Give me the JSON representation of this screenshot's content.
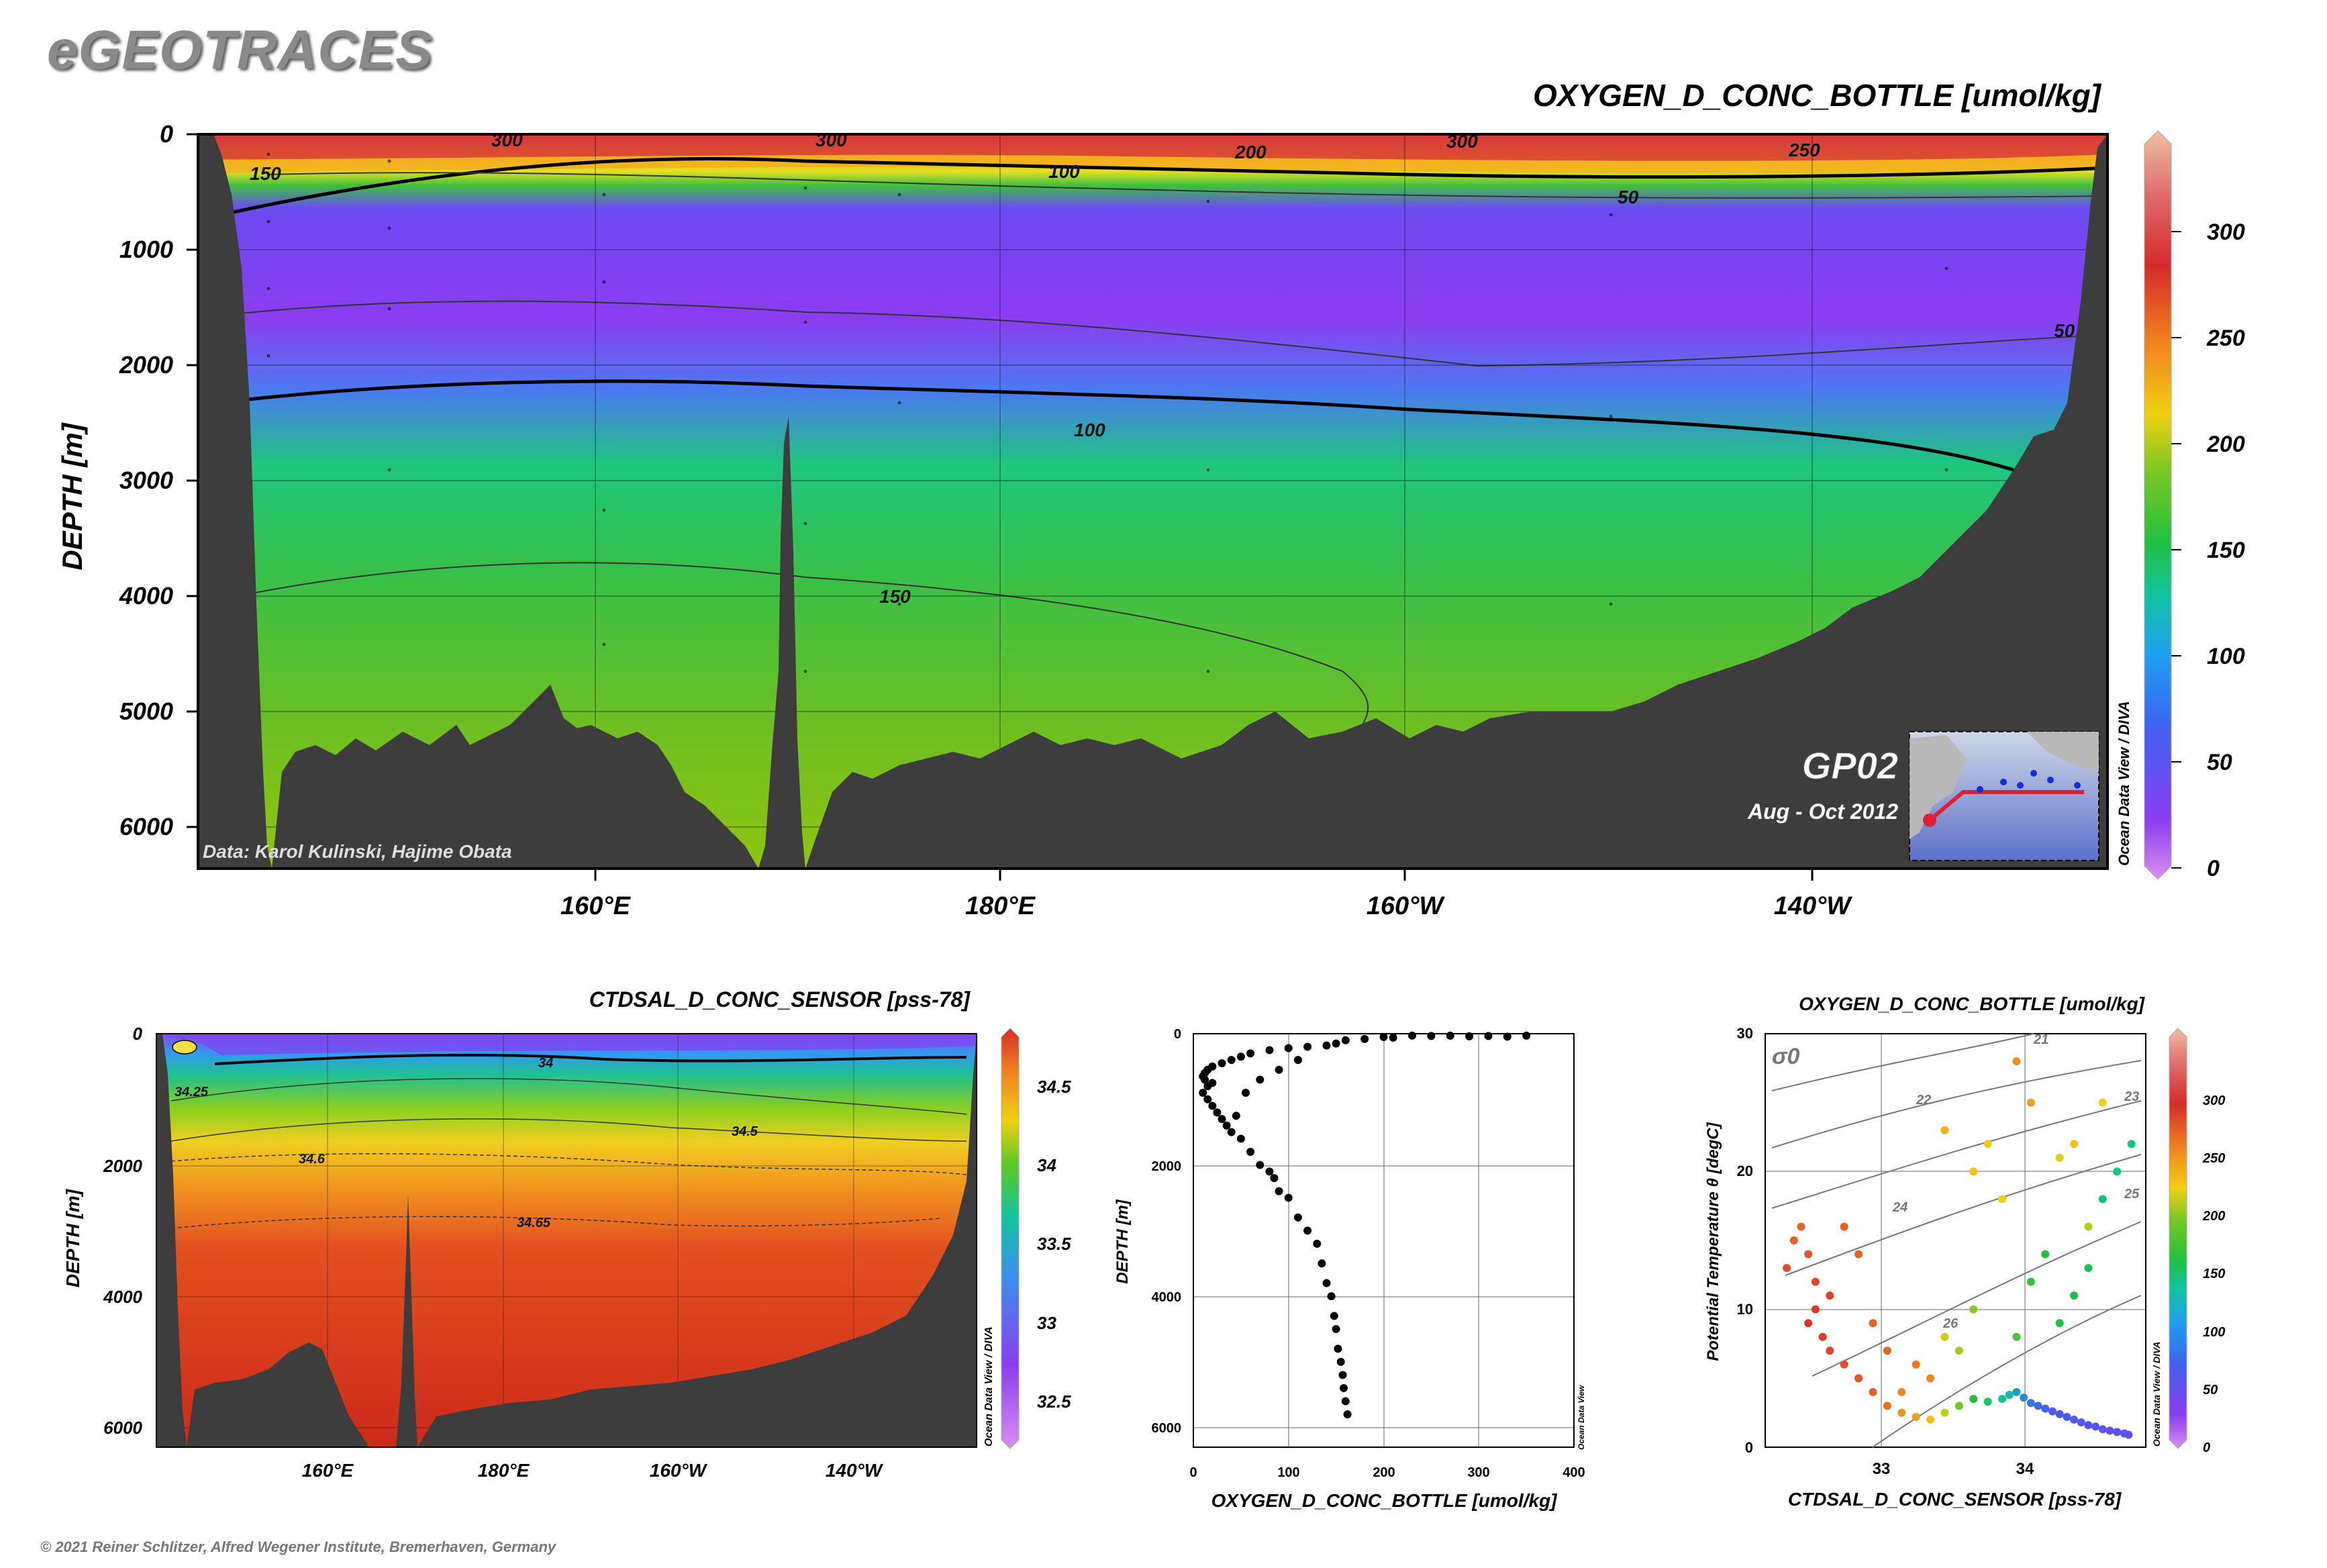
{
  "header": {
    "brand": "eGEOTRACES",
    "copyright": "© 2021 Reiner Schlitzer, Alfred Wegener Institute, Bremerhaven, Germany"
  },
  "colors": {
    "land": "#3d3d3d",
    "frame": "#000000",
    "brand_gray": "#8a8a8a"
  },
  "chart_data": [
    {
      "type": "heatmap",
      "title": "OXYGEN_D_CONC_BOTTLE [umol/kg]",
      "ylabel": "DEPTH [m]",
      "ylim": [
        6300,
        0
      ],
      "yticks": [
        "0",
        "1000",
        "2000",
        "3000",
        "4000",
        "5000",
        "6000"
      ],
      "xticks": [
        "160°E",
        "180°E",
        "160°W",
        "140°W"
      ],
      "colorbar": {
        "ticks": [
          "0",
          "50",
          "100",
          "150",
          "200",
          "250",
          "300"
        ],
        "range": [
          0,
          340
        ],
        "credit": "Ocean Data View / DIVA"
      },
      "contour_labels": [
        "300",
        "300",
        "300",
        "200",
        "250",
        "150",
        "100",
        "50",
        "50",
        "100",
        "150"
      ],
      "credit": "Data: Karol Kulinski, Hajime Obata",
      "inset": {
        "section": "GP02",
        "period": "Aug - Oct 2012"
      }
    },
    {
      "type": "heatmap",
      "title": "CTDSAL_D_CONC_SENSOR [pss-78]",
      "ylabel": "DEPTH [m]",
      "ylim": [
        6300,
        0
      ],
      "yticks": [
        "0",
        "2000",
        "4000",
        "6000"
      ],
      "xticks": [
        "160°E",
        "180°E",
        "160°W",
        "140°W"
      ],
      "colorbar": {
        "ticks": [
          "32.5",
          "33",
          "33.5",
          "34",
          "34.5"
        ],
        "range": [
          32.25,
          34.75
        ],
        "credit": "Ocean Data View / DIVA"
      },
      "contour_labels": [
        "34",
        "34.25",
        "34.5",
        "34.6",
        "34.65"
      ]
    },
    {
      "type": "scatter",
      "title": "",
      "xlabel": "OXYGEN_D_CONC_BOTTLE [umol/kg]",
      "ylabel": "DEPTH [m]",
      "xlim": [
        0,
        400
      ],
      "ylim": [
        6300,
        0
      ],
      "xticks": [
        "0",
        "100",
        "200",
        "300",
        "400"
      ],
      "yticks": [
        "0",
        "2000",
        "4000",
        "6000"
      ],
      "credit": "Ocean Data View",
      "points": [
        [
          230,
          30
        ],
        [
          250,
          35
        ],
        [
          270,
          30
        ],
        [
          290,
          40
        ],
        [
          310,
          35
        ],
        [
          330,
          45
        ],
        [
          350,
          30
        ],
        [
          200,
          50
        ],
        [
          210,
          60
        ],
        [
          180,
          80
        ],
        [
          160,
          100
        ],
        [
          150,
          150
        ],
        [
          140,
          180
        ],
        [
          120,
          200
        ],
        [
          100,
          220
        ],
        [
          80,
          250
        ],
        [
          60,
          300
        ],
        [
          50,
          350
        ],
        [
          40,
          400
        ],
        [
          30,
          450
        ],
        [
          20,
          500
        ],
        [
          15,
          550
        ],
        [
          12,
          600
        ],
        [
          10,
          650
        ],
        [
          12,
          700
        ],
        [
          20,
          750
        ],
        [
          15,
          800
        ],
        [
          10,
          900
        ],
        [
          15,
          1000
        ],
        [
          20,
          1100
        ],
        [
          25,
          1200
        ],
        [
          30,
          1300
        ],
        [
          35,
          1400
        ],
        [
          40,
          1500
        ],
        [
          50,
          1600
        ],
        [
          60,
          1800
        ],
        [
          70,
          2000
        ],
        [
          80,
          2100
        ],
        [
          85,
          2200
        ],
        [
          90,
          2400
        ],
        [
          100,
          2500
        ],
        [
          110,
          2800
        ],
        [
          120,
          3000
        ],
        [
          130,
          3200
        ],
        [
          135,
          3500
        ],
        [
          140,
          3800
        ],
        [
          145,
          4000
        ],
        [
          148,
          4300
        ],
        [
          150,
          4500
        ],
        [
          152,
          4800
        ],
        [
          155,
          5000
        ],
        [
          157,
          5200
        ],
        [
          158,
          5400
        ],
        [
          160,
          5600
        ],
        [
          162,
          5800
        ],
        [
          110,
          400
        ],
        [
          90,
          550
        ],
        [
          70,
          700
        ],
        [
          55,
          900
        ],
        [
          45,
          1250
        ]
      ]
    },
    {
      "type": "scatter",
      "title": "OXYGEN_D_CONC_BOTTLE [umol/kg]",
      "xlabel": "CTDSAL_D_CONC_SENSOR [pss-78]",
      "ylabel": "Potential Temperature θ [degC]",
      "xlim": [
        32.15,
        34.8
      ],
      "ylim": [
        0,
        30
      ],
      "xticks": [
        "33",
        "34"
      ],
      "yticks": [
        "0",
        "10",
        "20",
        "30"
      ],
      "isopycnal_symbol": "σ0",
      "isopycnal_labels": [
        "21",
        "22",
        "23",
        "24",
        "25",
        "26"
      ],
      "colorbar": {
        "ticks": [
          "0",
          "50",
          "100",
          "150",
          "200",
          "250",
          "300"
        ],
        "range": [
          0,
          340
        ],
        "credit": "Ocean Data View / DIVA"
      },
      "points": [
        [
          32.3,
          13,
          280
        ],
        [
          32.35,
          15,
          270
        ],
        [
          32.4,
          16,
          265
        ],
        [
          32.45,
          14,
          275
        ],
        [
          32.5,
          12,
          285
        ],
        [
          32.5,
          10,
          290
        ],
        [
          32.45,
          9,
          295
        ],
        [
          32.55,
          8,
          290
        ],
        [
          32.6,
          7,
          285
        ],
        [
          32.7,
          6,
          280
        ],
        [
          32.8,
          5,
          275
        ],
        [
          32.9,
          4,
          270
        ],
        [
          33.0,
          3,
          260
        ],
        [
          33.1,
          2.5,
          240
        ],
        [
          33.2,
          2.2,
          230
        ],
        [
          33.3,
          2,
          210
        ],
        [
          33.4,
          2.5,
          190
        ],
        [
          33.5,
          3,
          170
        ],
        [
          33.6,
          3.5,
          150
        ],
        [
          33.7,
          3.3,
          130
        ],
        [
          33.8,
          3.5,
          110
        ],
        [
          33.85,
          3.8,
          95
        ],
        [
          33.9,
          4,
          80
        ],
        [
          33.95,
          3.6,
          70
        ],
        [
          34.0,
          3.2,
          60
        ],
        [
          34.05,
          3,
          55
        ],
        [
          34.1,
          2.8,
          50
        ],
        [
          34.15,
          2.6,
          45
        ],
        [
          34.2,
          2.4,
          42
        ],
        [
          34.25,
          2.2,
          40
        ],
        [
          34.3,
          2,
          38
        ],
        [
          34.35,
          1.8,
          36
        ],
        [
          34.4,
          1.6,
          35
        ],
        [
          34.45,
          1.5,
          34
        ],
        [
          34.5,
          1.3,
          33
        ],
        [
          34.55,
          1.2,
          32
        ],
        [
          34.6,
          1.1,
          31
        ],
        [
          34.65,
          1,
          30
        ],
        [
          34.68,
          0.9,
          30
        ],
        [
          32.7,
          16,
          270
        ],
        [
          32.8,
          14,
          265
        ],
        [
          32.6,
          11,
          285
        ],
        [
          32.9,
          9,
          270
        ],
        [
          33.0,
          7,
          265
        ],
        [
          33.2,
          6,
          255
        ],
        [
          33.4,
          8,
          190
        ],
        [
          33.5,
          7,
          180
        ],
        [
          33.6,
          10,
          175
        ],
        [
          33.9,
          8,
          160
        ],
        [
          34.0,
          12,
          155
        ],
        [
          34.1,
          14,
          150
        ],
        [
          34.2,
          9,
          145
        ],
        [
          34.3,
          11,
          140
        ],
        [
          34.4,
          13,
          135
        ],
        [
          34.5,
          18,
          120
        ],
        [
          34.6,
          20,
          115
        ],
        [
          34.7,
          22,
          110
        ],
        [
          33.8,
          18,
          200
        ],
        [
          34.0,
          25,
          230
        ],
        [
          33.9,
          28,
          240
        ],
        [
          34.3,
          22,
          210
        ],
        [
          34.5,
          25,
          200
        ],
        [
          33.4,
          23,
          220
        ],
        [
          33.6,
          20,
          210
        ],
        [
          33.7,
          22,
          205
        ],
        [
          34.2,
          21,
          195
        ],
        [
          34.4,
          16,
          185
        ],
        [
          33.3,
          5,
          250
        ],
        [
          33.1,
          4,
          245
        ]
      ]
    }
  ]
}
